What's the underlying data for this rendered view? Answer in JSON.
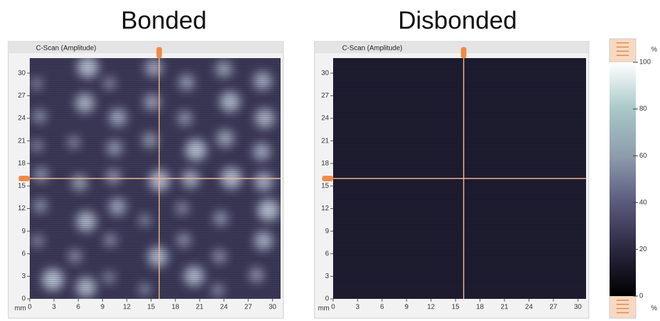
{
  "panels": [
    {
      "title": "Bonded",
      "header": "C-Scan (Amplitude)",
      "unit": "mm",
      "color": "#3b3857",
      "blobs": true,
      "xlim": [
        0,
        31
      ],
      "ylim": [
        0,
        32
      ],
      "xticks": [
        0,
        3,
        6,
        9,
        12,
        15,
        18,
        21,
        24,
        27,
        30
      ],
      "yticks": [
        0,
        3,
        6,
        9,
        12,
        15,
        18,
        21,
        24,
        27,
        30
      ],
      "cursor": {
        "x": 16,
        "y": 16
      }
    },
    {
      "title": "Disbonded",
      "header": "C-Scan (Amplitude)",
      "unit": "mm",
      "color": "#1e1c30",
      "blobs": false,
      "xlim": [
        0,
        31
      ],
      "ylim": [
        0,
        32
      ],
      "xticks": [
        0,
        3,
        6,
        9,
        12,
        15,
        18,
        21,
        24,
        27,
        30
      ],
      "yticks": [
        0,
        3,
        6,
        9,
        12,
        15,
        18,
        21,
        24,
        27,
        30
      ],
      "cursor": {
        "x": 16,
        "y": 16
      }
    }
  ],
  "colorbar": {
    "unit": "%",
    "lim": [
      0,
      100
    ],
    "ticks": [
      0,
      20,
      40,
      60,
      80,
      100
    ]
  }
}
